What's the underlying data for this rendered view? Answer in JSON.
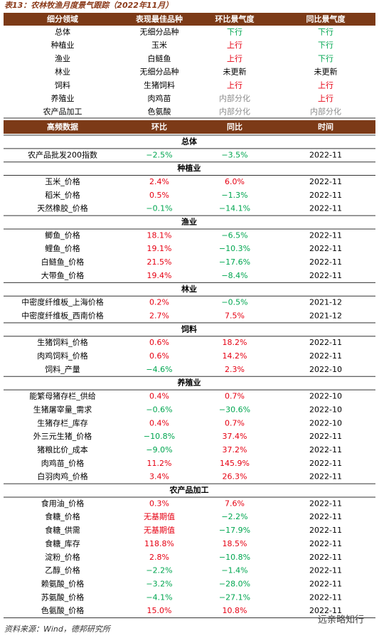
{
  "title": "表13：农林牧渔月度景气跟踪（2022年11月）",
  "palette": {
    "k": "#000000",
    "r": "#e60012",
    "g": "#00a650",
    "n": "#8c8c8c"
  },
  "summary": {
    "headers": [
      "细分领域",
      "表现最佳品种",
      "环比景气度",
      "同比景气度"
    ],
    "rows": [
      {
        "cells": [
          "总体",
          "无细分品种",
          "下行",
          "下行"
        ],
        "colors": [
          "k",
          "k",
          "g",
          "g"
        ]
      },
      {
        "cells": [
          "种植业",
          "玉米",
          "上行",
          "下行"
        ],
        "colors": [
          "k",
          "k",
          "r",
          "g"
        ]
      },
      {
        "cells": [
          "渔业",
          "白鲢鱼",
          "上行",
          "下行"
        ],
        "colors": [
          "k",
          "k",
          "r",
          "g"
        ]
      },
      {
        "cells": [
          "林业",
          "无细分品种",
          "未更新",
          "未更新"
        ],
        "colors": [
          "k",
          "k",
          "k",
          "k"
        ]
      },
      {
        "cells": [
          "饲料",
          "生猪饲料",
          "上行",
          "上行"
        ],
        "colors": [
          "k",
          "k",
          "r",
          "r"
        ]
      },
      {
        "cells": [
          "养殖业",
          "肉鸡苗",
          "内部分化",
          "上行"
        ],
        "colors": [
          "k",
          "k",
          "n",
          "r"
        ]
      },
      {
        "cells": [
          "农产品加工",
          "色氨酸",
          "内部分化",
          "内部分化"
        ],
        "colors": [
          "k",
          "k",
          "n",
          "n"
        ]
      }
    ]
  },
  "detail": {
    "headers": [
      "高频数据",
      "环比",
      "同比",
      "时间"
    ],
    "sections": [
      {
        "name": "总体",
        "rows": [
          {
            "cells": [
              "农产品批发200指数",
              "−2.5%",
              "−3.5%",
              "2022-11"
            ],
            "colors": [
              "k",
              "g",
              "g",
              "k"
            ]
          }
        ]
      },
      {
        "name": "种植业",
        "rows": [
          {
            "cells": [
              "玉米_价格",
              "2.4%",
              "6.0%",
              "2022-11"
            ],
            "colors": [
              "k",
              "r",
              "r",
              "k"
            ]
          },
          {
            "cells": [
              "稻米_价格",
              "0.5%",
              "−1.3%",
              "2022-11"
            ],
            "colors": [
              "k",
              "r",
              "g",
              "k"
            ]
          },
          {
            "cells": [
              "天然橡胶_价格",
              "−0.1%",
              "−14.1%",
              "2022-11"
            ],
            "colors": [
              "k",
              "g",
              "g",
              "k"
            ]
          }
        ]
      },
      {
        "name": "渔业",
        "rows": [
          {
            "cells": [
              "鲫鱼_价格",
              "18.1%",
              "−6.5%",
              "2022-11"
            ],
            "colors": [
              "k",
              "r",
              "g",
              "k"
            ]
          },
          {
            "cells": [
              "鲤鱼_价格",
              "19.1%",
              "−10.3%",
              "2022-11"
            ],
            "colors": [
              "k",
              "r",
              "g",
              "k"
            ]
          },
          {
            "cells": [
              "白鲢鱼_价格",
              "21.5%",
              "−17.6%",
              "2022-11"
            ],
            "colors": [
              "k",
              "r",
              "g",
              "k"
            ]
          },
          {
            "cells": [
              "大带鱼_价格",
              "19.4%",
              "−8.4%",
              "2022-11"
            ],
            "colors": [
              "k",
              "r",
              "g",
              "k"
            ]
          }
        ]
      },
      {
        "name": "林业",
        "rows": [
          {
            "cells": [
              "中密度纤维板_上海价格",
              "0.2%",
              "−0.5%",
              "2021-12"
            ],
            "colors": [
              "k",
              "r",
              "g",
              "k"
            ]
          },
          {
            "cells": [
              "中密度纤维板_西南价格",
              "2.7%",
              "7.5%",
              "2021-12"
            ],
            "colors": [
              "k",
              "r",
              "r",
              "k"
            ]
          }
        ]
      },
      {
        "name": "饲料",
        "rows": [
          {
            "cells": [
              "生猪饲料_价格",
              "0.6%",
              "18.2%",
              "2022-11"
            ],
            "colors": [
              "k",
              "r",
              "r",
              "k"
            ]
          },
          {
            "cells": [
              "肉鸡饲料_价格",
              "0.6%",
              "14.2%",
              "2022-11"
            ],
            "colors": [
              "k",
              "r",
              "r",
              "k"
            ]
          },
          {
            "cells": [
              "饲料_产量",
              "−4.6%",
              "2.3%",
              "2022-10"
            ],
            "colors": [
              "k",
              "g",
              "r",
              "k"
            ]
          }
        ]
      },
      {
        "name": "养殖业",
        "rows": [
          {
            "cells": [
              "能繁母猪存栏_供给",
              "0.4%",
              "0.7%",
              "2022-10"
            ],
            "colors": [
              "k",
              "r",
              "r",
              "k"
            ]
          },
          {
            "cells": [
              "生猪屠宰量_需求",
              "−0.6%",
              "−30.6%",
              "2022-10"
            ],
            "colors": [
              "k",
              "g",
              "g",
              "k"
            ]
          },
          {
            "cells": [
              "生猪存栏_库存",
              "0.4%",
              "0.7%",
              "2022-10"
            ],
            "colors": [
              "k",
              "r",
              "r",
              "k"
            ]
          },
          {
            "cells": [
              "外三元生猪_价格",
              "−10.8%",
              "37.4%",
              "2022-11"
            ],
            "colors": [
              "k",
              "g",
              "r",
              "k"
            ]
          },
          {
            "cells": [
              "猪粮比价_成本",
              "−9.0%",
              "37.2%",
              "2022-11"
            ],
            "colors": [
              "k",
              "g",
              "r",
              "k"
            ]
          },
          {
            "cells": [
              "肉鸡苗_价格",
              "11.2%",
              "145.9%",
              "2022-11"
            ],
            "colors": [
              "k",
              "r",
              "r",
              "k"
            ]
          },
          {
            "cells": [
              "白羽肉鸡_价格",
              "3.4%",
              "26.3%",
              "2022-11"
            ],
            "colors": [
              "k",
              "r",
              "r",
              "k"
            ]
          }
        ]
      },
      {
        "name": "农产品加工",
        "rows": [
          {
            "cells": [
              "食用油_价格",
              "0.3%",
              "7.6%",
              "2022-11"
            ],
            "colors": [
              "k",
              "r",
              "r",
              "k"
            ]
          },
          {
            "cells": [
              "食糖_价格",
              "无基期值",
              "−2.2%",
              "2022-11"
            ],
            "colors": [
              "k",
              "r",
              "g",
              "k"
            ]
          },
          {
            "cells": [
              "食糖_供需",
              "无基期值",
              "−17.9%",
              "2022-11"
            ],
            "colors": [
              "k",
              "r",
              "g",
              "k"
            ]
          },
          {
            "cells": [
              "食糖_库存",
              "118.8%",
              "18.5%",
              "2022-11"
            ],
            "colors": [
              "k",
              "r",
              "r",
              "k"
            ]
          },
          {
            "cells": [
              "淀粉_价格",
              "2.8%",
              "−10.8%",
              "2022-11"
            ],
            "colors": [
              "k",
              "r",
              "g",
              "k"
            ]
          },
          {
            "cells": [
              "乙醇_价格",
              "−2.2%",
              "−1.4%",
              "2022-11"
            ],
            "colors": [
              "k",
              "g",
              "g",
              "k"
            ]
          },
          {
            "cells": [
              "赖氨酸_价格",
              "−3.2%",
              "−28.0%",
              "2022-11"
            ],
            "colors": [
              "k",
              "g",
              "g",
              "k"
            ]
          },
          {
            "cells": [
              "苏氨酸_价格",
              "−4.1%",
              "−27.1%",
              "2022-11"
            ],
            "colors": [
              "k",
              "g",
              "g",
              "k"
            ]
          },
          {
            "cells": [
              "色氨酸_价格",
              "15.0%",
              "10.8%",
              "2022-11"
            ],
            "colors": [
              "k",
              "r",
              "r",
              "k"
            ]
          }
        ]
      }
    ]
  },
  "source": "资料来源：Wind，德邦研究所",
  "watermark": "远亲略知行"
}
